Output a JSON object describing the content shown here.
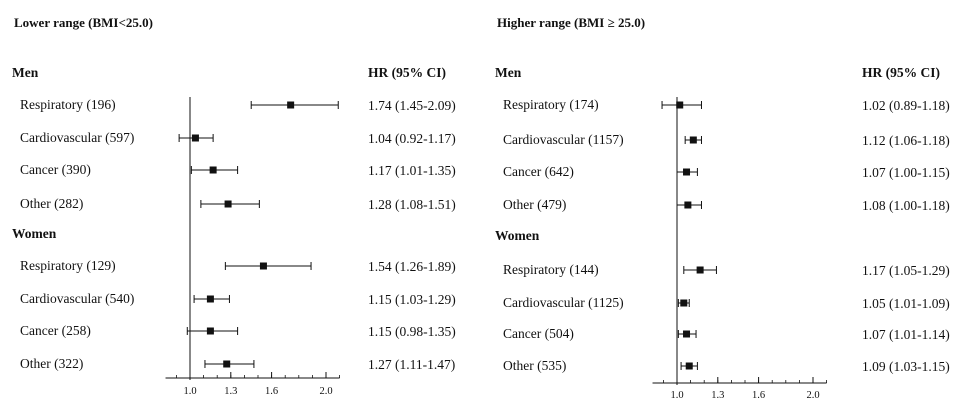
{
  "chart_data": [
    {
      "type": "forest",
      "title": "Lower range (BMI<25.0)",
      "hr_header": "HR (95% CI)",
      "x_ticks": [
        "1.0",
        "1.3",
        "1.6",
        "2.0"
      ],
      "xlim": [
        0.82,
        2.1
      ],
      "reference_line": 1.0,
      "groups": [
        {
          "name": "Men",
          "rows": [
            {
              "label": "Respiratory  (196)",
              "hr": 1.74,
              "lo": 1.45,
              "hi": 2.09,
              "hr_text": "1.74 (1.45-2.09)"
            },
            {
              "label": "Cardiovascular (597)",
              "hr": 1.04,
              "lo": 0.92,
              "hi": 1.17,
              "hr_text": "1.04 (0.92-1.17)"
            },
            {
              "label": "Cancer (390)",
              "hr": 1.17,
              "lo": 1.01,
              "hi": 1.35,
              "hr_text": "1.17 (1.01-1.35)"
            },
            {
              "label": "Other (282)",
              "hr": 1.28,
              "lo": 1.08,
              "hi": 1.51,
              "hr_text": "1.28 (1.08-1.51)"
            }
          ]
        },
        {
          "name": "Women",
          "rows": [
            {
              "label": "Respiratory  (129)",
              "hr": 1.54,
              "lo": 1.26,
              "hi": 1.89,
              "hr_text": "1.54 (1.26-1.89)"
            },
            {
              "label": "Cardiovascular (540)",
              "hr": 1.15,
              "lo": 1.03,
              "hi": 1.29,
              "hr_text": "1.15 (1.03-1.29)"
            },
            {
              "label": "Cancer (258)",
              "hr": 1.15,
              "lo": 0.98,
              "hi": 1.35,
              "hr_text": "1.15 (0.98-1.35)"
            },
            {
              "label": "Other (322)",
              "hr": 1.27,
              "lo": 1.11,
              "hi": 1.47,
              "hr_text": "1.27 (1.11-1.47)"
            }
          ]
        }
      ]
    },
    {
      "type": "forest",
      "title": "Higher range (BMI ≥ 25.0)",
      "hr_header": "HR (95% CI)",
      "x_ticks": [
        "1.0",
        "1.3",
        "1.6",
        "2.0"
      ],
      "xlim": [
        0.82,
        2.1
      ],
      "reference_line": 1.0,
      "groups": [
        {
          "name": "Men",
          "rows": [
            {
              "label": "Respiratory  (174)",
              "hr": 1.02,
              "lo": 0.89,
              "hi": 1.18,
              "hr_text": "1.02 (0.89-1.18)"
            },
            {
              "label": "Cardiovascular (1157)",
              "hr": 1.12,
              "lo": 1.06,
              "hi": 1.18,
              "hr_text": "1.12 (1.06-1.18)"
            },
            {
              "label": "Cancer (642)",
              "hr": 1.07,
              "lo": 1.0,
              "hi": 1.15,
              "hr_text": "1.07 (1.00-1.15)"
            },
            {
              "label": "Other (479)",
              "hr": 1.08,
              "lo": 1.0,
              "hi": 1.18,
              "hr_text": "1.08 (1.00-1.18)"
            }
          ]
        },
        {
          "name": "Women",
          "rows": [
            {
              "label": "Respiratory  (144)",
              "hr": 1.17,
              "lo": 1.05,
              "hi": 1.29,
              "hr_text": "1.17 (1.05-1.29)"
            },
            {
              "label": "Cardiovascular (1125)",
              "hr": 1.05,
              "lo": 1.01,
              "hi": 1.09,
              "hr_text": "1.05 (1.01-1.09)"
            },
            {
              "label": "Cancer (504)",
              "hr": 1.07,
              "lo": 1.01,
              "hi": 1.14,
              "hr_text": "1.07 (1.01-1.14)"
            },
            {
              "label": "Other (535)",
              "hr": 1.09,
              "lo": 1.03,
              "hi": 1.15,
              "hr_text": "1.09 (1.03-1.15)"
            }
          ]
        }
      ]
    }
  ]
}
